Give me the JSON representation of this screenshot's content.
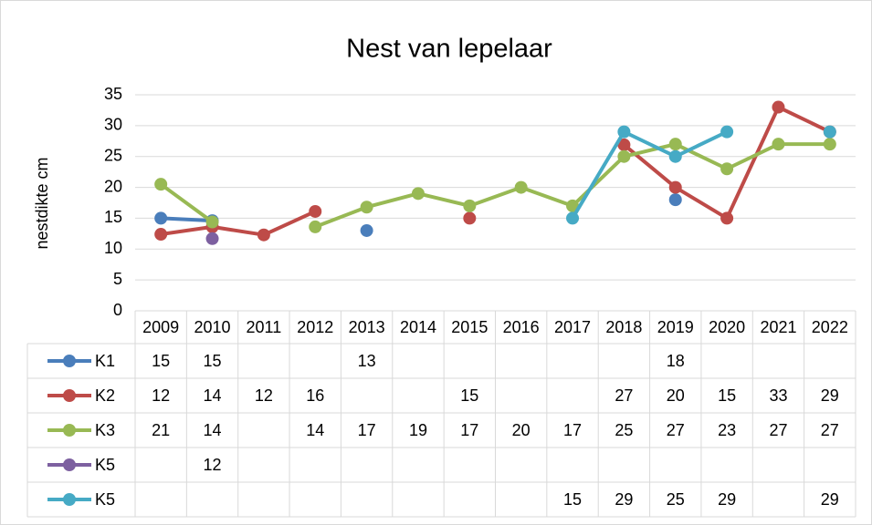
{
  "chart_data": {
    "type": "line",
    "title": "Nest van lepelaar",
    "y_label": "nestdikte cm",
    "categories": [
      "2009",
      "2010",
      "2011",
      "2012",
      "2013",
      "2014",
      "2015",
      "2016",
      "2017",
      "2018",
      "2019",
      "2020",
      "2021",
      "2022"
    ],
    "ylim": [
      0,
      35
    ],
    "yticks": [
      0,
      5,
      10,
      15,
      20,
      25,
      30,
      35
    ],
    "grid": true,
    "series": [
      {
        "name": "K1",
        "color": "#4a7ebb",
        "values": [
          15,
          14.6,
          null,
          null,
          13,
          null,
          null,
          null,
          null,
          null,
          18,
          null,
          null,
          null
        ],
        "value_labels": [
          "15",
          "15",
          null,
          null,
          "13",
          null,
          null,
          null,
          null,
          null,
          "18",
          null,
          null,
          null
        ]
      },
      {
        "name": "K2",
        "color": "#be4b48",
        "values": [
          12.4,
          13.6,
          12.3,
          16.1,
          null,
          null,
          15,
          null,
          null,
          26.9,
          20,
          15,
          33,
          29
        ],
        "value_labels": [
          "12",
          "14",
          "12",
          "16",
          null,
          null,
          "15",
          null,
          null,
          "27",
          "20",
          "15",
          "33",
          "29"
        ]
      },
      {
        "name": "K3",
        "color": "#98b954",
        "values": [
          20.5,
          14.4,
          null,
          13.6,
          16.8,
          19,
          17,
          20,
          17,
          25,
          27,
          23,
          27,
          27
        ],
        "value_labels": [
          "21",
          "14",
          null,
          "14",
          "17",
          "19",
          "17",
          "20",
          "17",
          "25",
          "27",
          "23",
          "27",
          "27"
        ]
      },
      {
        "name": "K5",
        "color": "#7d60a0",
        "values": [
          null,
          11.7,
          null,
          null,
          null,
          null,
          null,
          null,
          null,
          null,
          null,
          null,
          null,
          null
        ],
        "value_labels": [
          null,
          "12",
          null,
          null,
          null,
          null,
          null,
          null,
          null,
          null,
          null,
          null,
          null,
          null
        ]
      },
      {
        "name": "K5",
        "color": "#46aac5",
        "values": [
          null,
          null,
          null,
          null,
          null,
          null,
          null,
          null,
          15,
          29,
          25,
          29,
          null,
          29
        ],
        "value_labels": [
          null,
          null,
          null,
          null,
          null,
          null,
          null,
          null,
          "15",
          "29",
          "25",
          "29",
          null,
          "29"
        ]
      }
    ]
  }
}
